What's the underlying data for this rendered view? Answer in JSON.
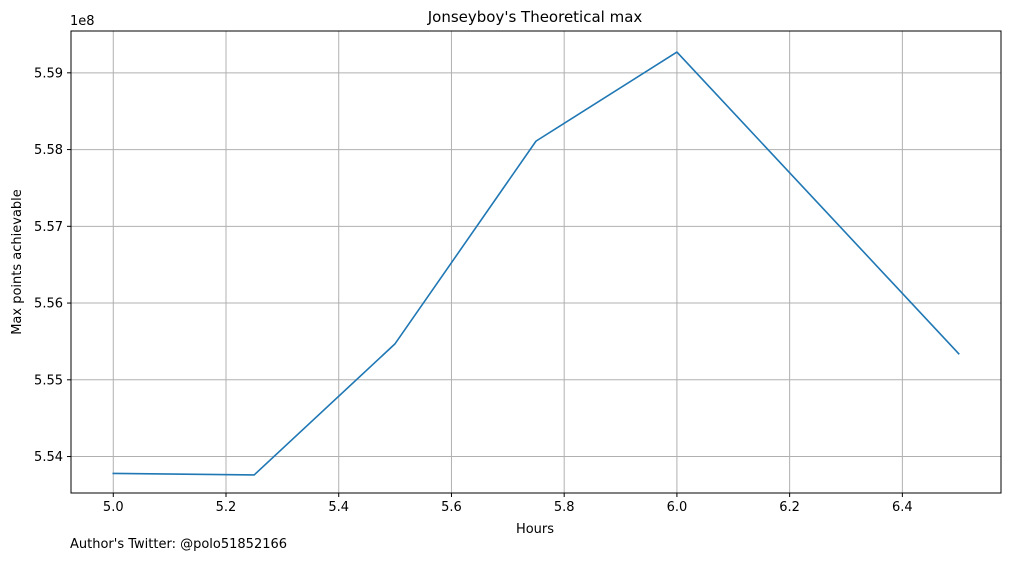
{
  "footer": {
    "note": "Author's Twitter: @polo51852166"
  },
  "chart_data": {
    "type": "line",
    "title": "Jonseyboy's Theoretical max",
    "xlabel": "Hours",
    "ylabel": "Max points achievable",
    "y_offset_label": "1e8",
    "x": [
      5.0,
      5.25,
      5.5,
      5.75,
      6.0,
      6.5
    ],
    "series": [
      {
        "values": [
          553780000,
          553760000,
          555470000,
          558110000,
          559270000,
          555340000
        ],
        "color": "#1f77b4"
      }
    ],
    "xlim": [
      4.925,
      6.575
    ],
    "ylim": [
      553525000,
      559545000
    ],
    "x_ticks": [
      5.0,
      5.2,
      5.4,
      5.6,
      5.8,
      6.0,
      6.2,
      6.4
    ],
    "x_tick_labels": [
      "5.0",
      "5.2",
      "5.4",
      "5.6",
      "5.8",
      "6.0",
      "6.2",
      "6.4"
    ],
    "y_ticks": [
      554000000,
      555000000,
      556000000,
      557000000,
      558000000,
      559000000
    ],
    "y_tick_labels": [
      "5.54",
      "5.55",
      "5.56",
      "5.57",
      "5.58",
      "5.59"
    ],
    "grid": true,
    "grid_color": "#b0b0b0",
    "legend": "none"
  }
}
